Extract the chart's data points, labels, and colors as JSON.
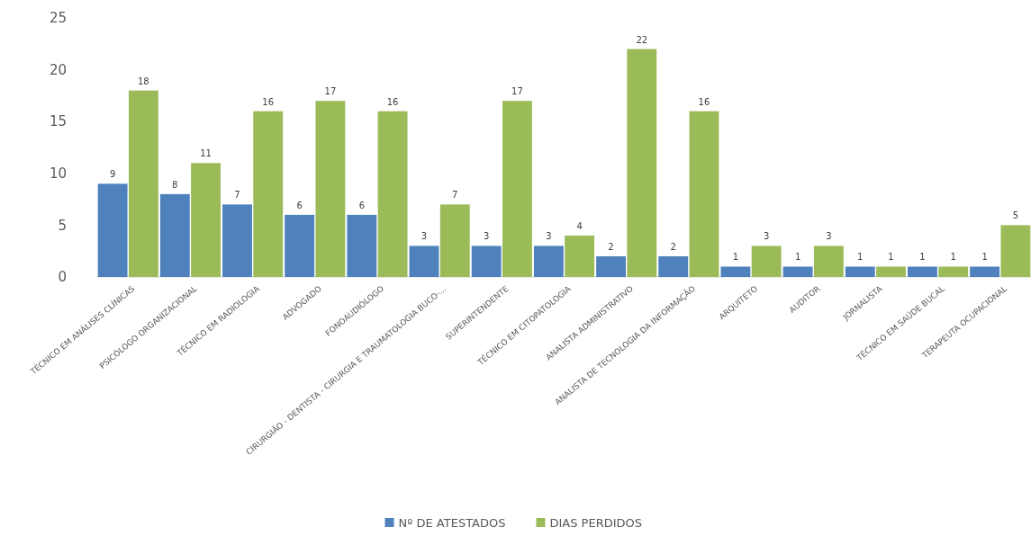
{
  "chart_data": {
    "type": "bar",
    "categories": [
      "TÉCNICO EM ANÁLISES CLÍNICAS",
      "PSICÓLOGO ORGANIZACIONAL",
      "TÉCNICO EM RADIOLOGIA",
      "ADVOGADO",
      "FONOAUDIÓLOGO",
      "CIRURGIÃO - DENTISTA - CIRURGIA E TRAUMATOLOGIA BUCO-...",
      "SUPERINTENDENTE",
      "TÉCNICO EM CITOPATOLOGIA",
      "ANALISTA ADMINISTRATIVO",
      "ANALISTA DE TECNOLOGIA DA INFORMAÇÃO",
      "ARQUITETO",
      "AUDITOR",
      "JORNALISTA",
      "TÉCNICO EM SAÚDE BUCAL",
      "TERAPEUTA OCUPACIONAL"
    ],
    "series": [
      {
        "name": "Nº DE ATESTADOS",
        "color": "#4f81bd",
        "values": [
          9,
          8,
          7,
          6,
          6,
          3,
          3,
          3,
          2,
          2,
          1,
          1,
          1,
          1,
          1
        ]
      },
      {
        "name": "DIAS PERDIDOS",
        "color": "#9bbb59",
        "values": [
          18,
          11,
          16,
          17,
          16,
          7,
          17,
          4,
          22,
          16,
          3,
          3,
          1,
          1,
          5
        ]
      }
    ],
    "ylim": [
      0,
      25
    ],
    "yticks": [
      0,
      5,
      10,
      15,
      20,
      25
    ],
    "data_labels": true,
    "legend": "bottom",
    "grid": false
  }
}
